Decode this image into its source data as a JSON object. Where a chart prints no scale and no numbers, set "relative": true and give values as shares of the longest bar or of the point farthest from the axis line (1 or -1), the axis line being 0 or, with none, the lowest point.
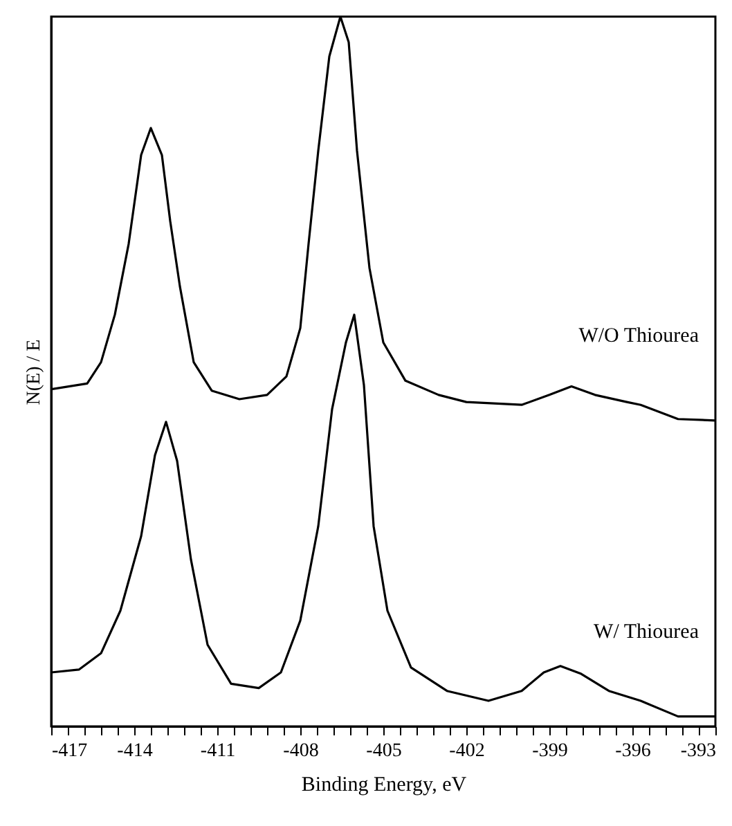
{
  "chart_data": {
    "type": "line",
    "relative": true,
    "xlabel": "Binding Energy, eV",
    "ylabel": "N(E) / E",
    "xlim": [
      -417,
      -393
    ],
    "xticks": [
      -417,
      {
        "value": -416.4,
        "label": null
      },
      {
        "value": -415.8,
        "label": null
      },
      {
        "value": -415.2,
        "label": null
      },
      {
        "value": -414.6,
        "label": null
      },
      -414,
      {
        "value": -413.4,
        "label": null
      },
      {
        "value": -412.8,
        "label": null
      },
      {
        "value": -412.2,
        "label": null
      },
      {
        "value": -411.6,
        "label": null
      },
      -411,
      {
        "value": -410.4,
        "label": null
      },
      {
        "value": -409.8,
        "label": null
      },
      {
        "value": -409.2,
        "label": null
      },
      {
        "value": -408.6,
        "label": null
      },
      -408,
      {
        "value": -407.4,
        "label": null
      },
      {
        "value": -406.8,
        "label": null
      },
      {
        "value": -406.2,
        "label": null
      },
      {
        "value": -405.6,
        "label": null
      },
      -405,
      {
        "value": -404.4,
        "label": null
      },
      {
        "value": -403.8,
        "label": null
      },
      {
        "value": -403.2,
        "label": null
      },
      {
        "value": -402.6,
        "label": null
      },
      -402,
      {
        "value": -401.4,
        "label": null
      },
      {
        "value": -400.8,
        "label": null
      },
      {
        "value": -400.2,
        "label": null
      },
      {
        "value": -399.6,
        "label": null
      },
      -399,
      {
        "value": -398.4,
        "label": null
      },
      {
        "value": -397.8,
        "label": null
      },
      {
        "value": -397.2,
        "label": null
      },
      {
        "value": -396.6,
        "label": null
      },
      -396,
      {
        "value": -395.4,
        "label": null
      },
      {
        "value": -394.8,
        "label": null
      },
      {
        "value": -394.2,
        "label": null
      },
      {
        "value": -393.6,
        "label": null
      },
      -393
    ],
    "tick_labels": "x",
    "grid": false,
    "marker": "none",
    "line_style": "solid",
    "series": [
      {
        "name": "W/O Thiourea",
        "color": "#000000",
        "x": [
          -417,
          -415.7,
          -415.2,
          -414.7,
          -414.2,
          -413.75,
          -413.4,
          -413.0,
          -412.7,
          -412.35,
          -411.85,
          -411.2,
          -410.2,
          -409.2,
          -408.5,
          -408.0,
          -407.7,
          -407.35,
          -406.95,
          -406.55,
          -406.25,
          -405.95,
          -405.5,
          -405.0,
          -404.2,
          -403.0,
          -402.0,
          -400.0,
          -399.0,
          -398.2,
          -397.35,
          -396.2,
          -395.7,
          -394.35,
          -393
        ],
        "values": [
          0.475,
          0.483,
          0.513,
          0.58,
          0.68,
          0.805,
          0.843,
          0.805,
          0.712,
          0.62,
          0.513,
          0.473,
          0.461,
          0.467,
          0.493,
          0.561,
          0.68,
          0.811,
          0.944,
          1.0,
          0.964,
          0.811,
          0.646,
          0.541,
          0.487,
          0.467,
          0.457,
          0.453,
          0.467,
          0.479,
          0.467,
          0.457,
          0.453,
          0.433,
          0.431
        ]
      },
      {
        "name": "W/ Thiourea",
        "color": "#000000",
        "x": [
          -417,
          -416,
          -415.2,
          -414.5,
          -413.75,
          -413.25,
          -412.85,
          -412.45,
          -411.95,
          -411.35,
          -410.5,
          -409.5,
          -408.7,
          -408.0,
          -407.35,
          -406.85,
          -406.35,
          -406.05,
          -405.7,
          -405.35,
          -404.85,
          -404.0,
          -402.7,
          -401.2,
          -400.0,
          -399.2,
          -398.6,
          -397.85,
          -396.85,
          -395.7,
          -394.35,
          -393
        ],
        "values": [
          0.076,
          0.08,
          0.103,
          0.163,
          0.268,
          0.382,
          0.429,
          0.374,
          0.235,
          0.115,
          0.06,
          0.054,
          0.076,
          0.149,
          0.282,
          0.447,
          0.541,
          0.58,
          0.481,
          0.282,
          0.163,
          0.083,
          0.05,
          0.036,
          0.05,
          0.076,
          0.085,
          0.074,
          0.05,
          0.036,
          0.014,
          0.014
        ]
      }
    ]
  }
}
